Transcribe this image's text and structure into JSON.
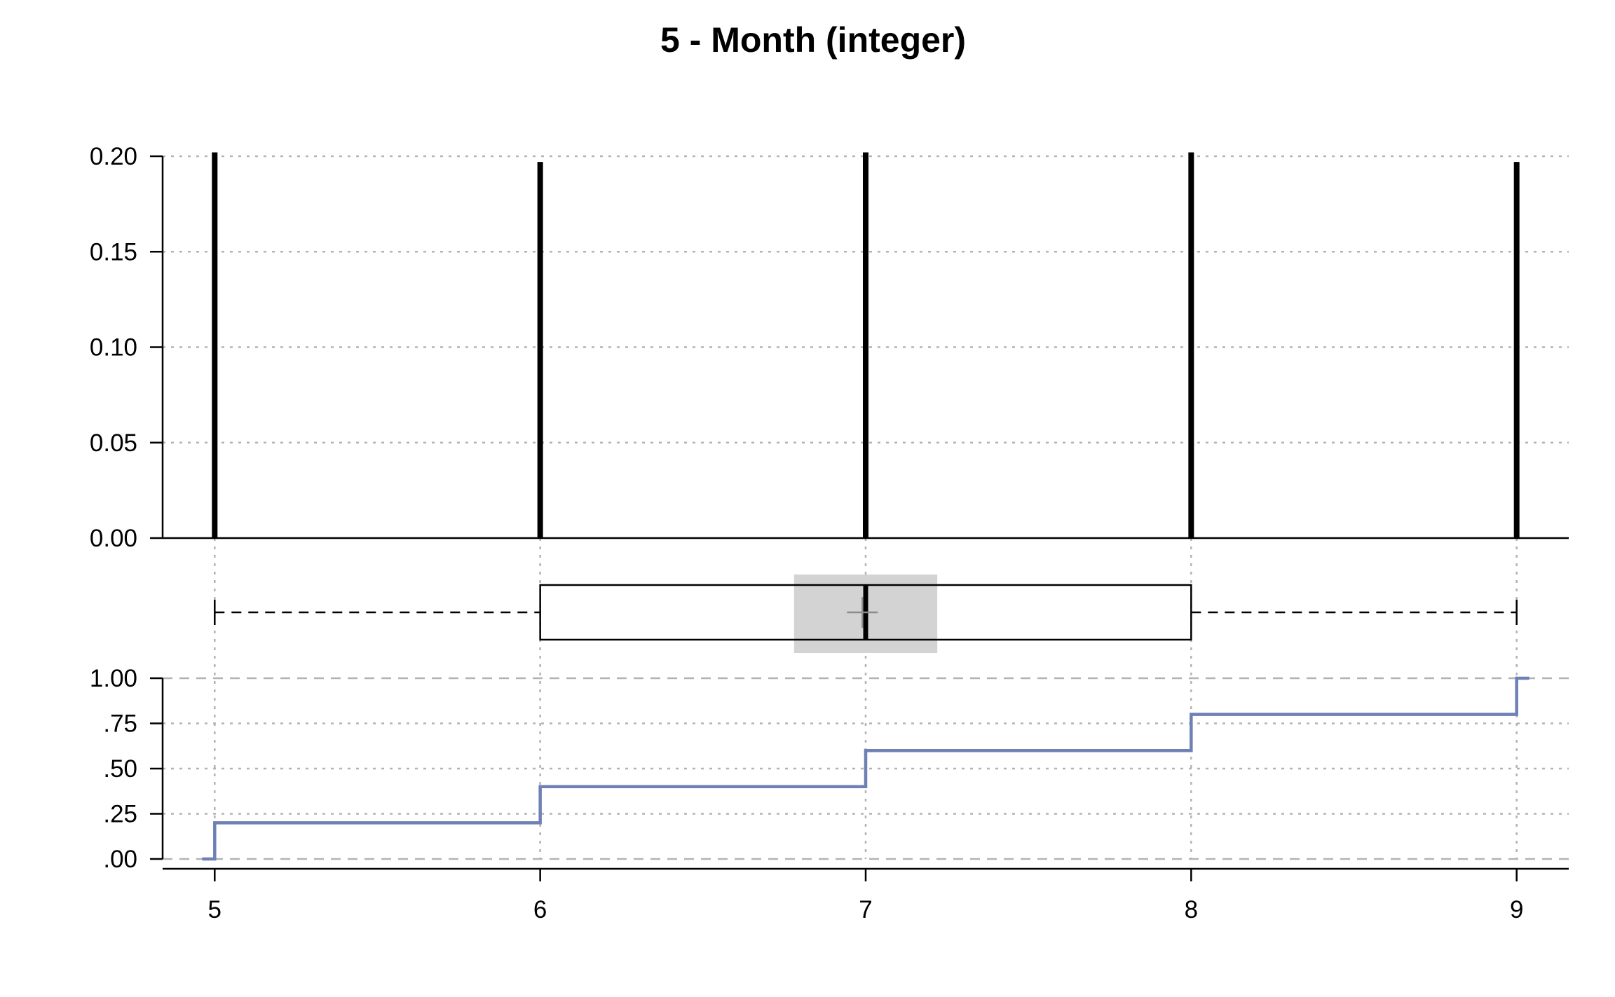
{
  "chart_data": [
    {
      "type": "bar",
      "title": "5 - Month (integer)",
      "xlabel": "",
      "ylabel": "",
      "x": [
        5,
        6,
        7,
        8,
        9
      ],
      "values": [
        0.202,
        0.197,
        0.202,
        0.202,
        0.197
      ],
      "ylim": [
        0,
        0.2
      ],
      "xlim": [
        4.84,
        9.16
      ],
      "yticks": [
        0.0,
        0.05,
        0.1,
        0.15,
        0.2
      ],
      "ytick_labels": [
        "0.00",
        "0.05",
        "0.10",
        "0.15",
        "0.20"
      ],
      "grid": "horizontal-dotted",
      "bar_color": "#000000"
    },
    {
      "type": "boxplot",
      "whisker_low": 5,
      "q1": 6,
      "median": 7,
      "mean": 6.99,
      "q3": 8,
      "whisker_high": 9,
      "median_ci": [
        6.78,
        7.22
      ],
      "ci_color": "#d3d3d3",
      "mean_marker_color": "#8c8c8c"
    },
    {
      "type": "line",
      "subtype": "ecdf-step",
      "x": [
        5,
        6,
        7,
        8,
        9
      ],
      "y": [
        0.2,
        0.4,
        0.6,
        0.8,
        1.0
      ],
      "ylim": [
        0,
        1
      ],
      "yticks": [
        0,
        0.25,
        0.5,
        0.75,
        1.0
      ],
      "ytick_labels": [
        ".00",
        ".25",
        ".50",
        ".75",
        "1.00"
      ],
      "xticks": [
        5,
        6,
        7,
        8,
        9
      ],
      "xtick_labels": [
        "5",
        "6",
        "7",
        "8",
        "9"
      ],
      "line_color": "#6f80b5",
      "grid": "horizontal-dotted"
    }
  ]
}
